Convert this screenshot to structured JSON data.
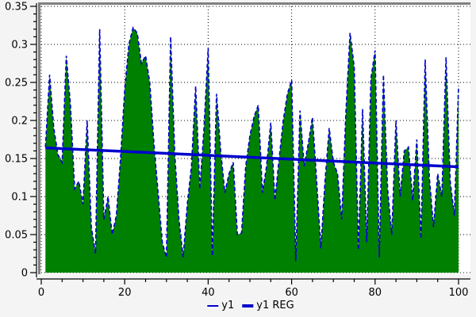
{
  "figure": {
    "background": "#f4f4f4",
    "plot_background": "#ffffff",
    "plot_border_color": "#808080",
    "grid_color": "#000000",
    "axis_color": "#000000",
    "text_color": "#000000"
  },
  "legend": {
    "position": "bottom-center",
    "items": [
      {
        "label": "y1",
        "marker": "thin-line",
        "color": "#0000cc"
      },
      {
        "label": "y1 REG",
        "marker": "thick-line",
        "color": "#0000cc"
      }
    ]
  },
  "chart_data": {
    "type": "area",
    "title": "",
    "xlabel": "",
    "ylabel": "",
    "xlim": [
      0,
      100
    ],
    "ylim": [
      0,
      0.35
    ],
    "grid": "dotted",
    "legend_position": "bottom-center",
    "x_ticks": {
      "values": [
        0,
        20,
        40,
        60,
        80,
        100
      ],
      "labels": [
        "0",
        "20",
        "40",
        "60",
        "80",
        "100"
      ],
      "minor_step": 5
    },
    "y_ticks": {
      "values": [
        0,
        0.05,
        0.1,
        0.15,
        0.2,
        0.25,
        0.3,
        0.35
      ],
      "labels": [
        "0",
        "0.05",
        "0.1",
        "0.15",
        "0.2",
        "0.25",
        "0.3",
        "0.35"
      ],
      "minor_step": 0.01
    },
    "series": [
      {
        "name": "y1",
        "type": "area",
        "line_color": "#0000cc",
        "fill_color": "#008000",
        "line_width": 1.6,
        "dash": "5 3",
        "x_start": 1,
        "x_step": 1,
        "values": [
          0.165,
          0.26,
          0.19,
          0.155,
          0.145,
          0.285,
          0.22,
          0.11,
          0.12,
          0.09,
          0.2,
          0.06,
          0.025,
          0.32,
          0.07,
          0.1,
          0.05,
          0.075,
          0.15,
          0.24,
          0.3,
          0.322,
          0.315,
          0.275,
          0.285,
          0.25,
          0.17,
          0.105,
          0.04,
          0.02,
          0.31,
          0.155,
          0.07,
          0.02,
          0.09,
          0.14,
          0.245,
          0.11,
          0.19,
          0.295,
          0.022,
          0.235,
          0.16,
          0.105,
          0.13,
          0.145,
          0.05,
          0.052,
          0.14,
          0.18,
          0.205,
          0.22,
          0.105,
          0.14,
          0.197,
          0.095,
          0.15,
          0.2,
          0.235,
          0.253,
          0.015,
          0.213,
          0.14,
          0.17,
          0.204,
          0.12,
          0.032,
          0.12,
          0.19,
          0.145,
          0.13,
          0.07,
          0.21,
          0.315,
          0.27,
          0.03,
          0.215,
          0.04,
          0.255,
          0.292,
          0.02,
          0.26,
          0.11,
          0.05,
          0.2,
          0.1,
          0.16,
          0.165,
          0.095,
          0.175,
          0.045,
          0.28,
          0.125,
          0.06,
          0.13,
          0.1,
          0.283,
          0.12,
          0.075,
          0.245
        ]
      },
      {
        "name": "y1 REG",
        "type": "line",
        "line_color": "#0000cc",
        "line_width": 3.5,
        "x": [
          1,
          100
        ],
        "values": [
          0.164,
          0.139
        ]
      }
    ]
  }
}
